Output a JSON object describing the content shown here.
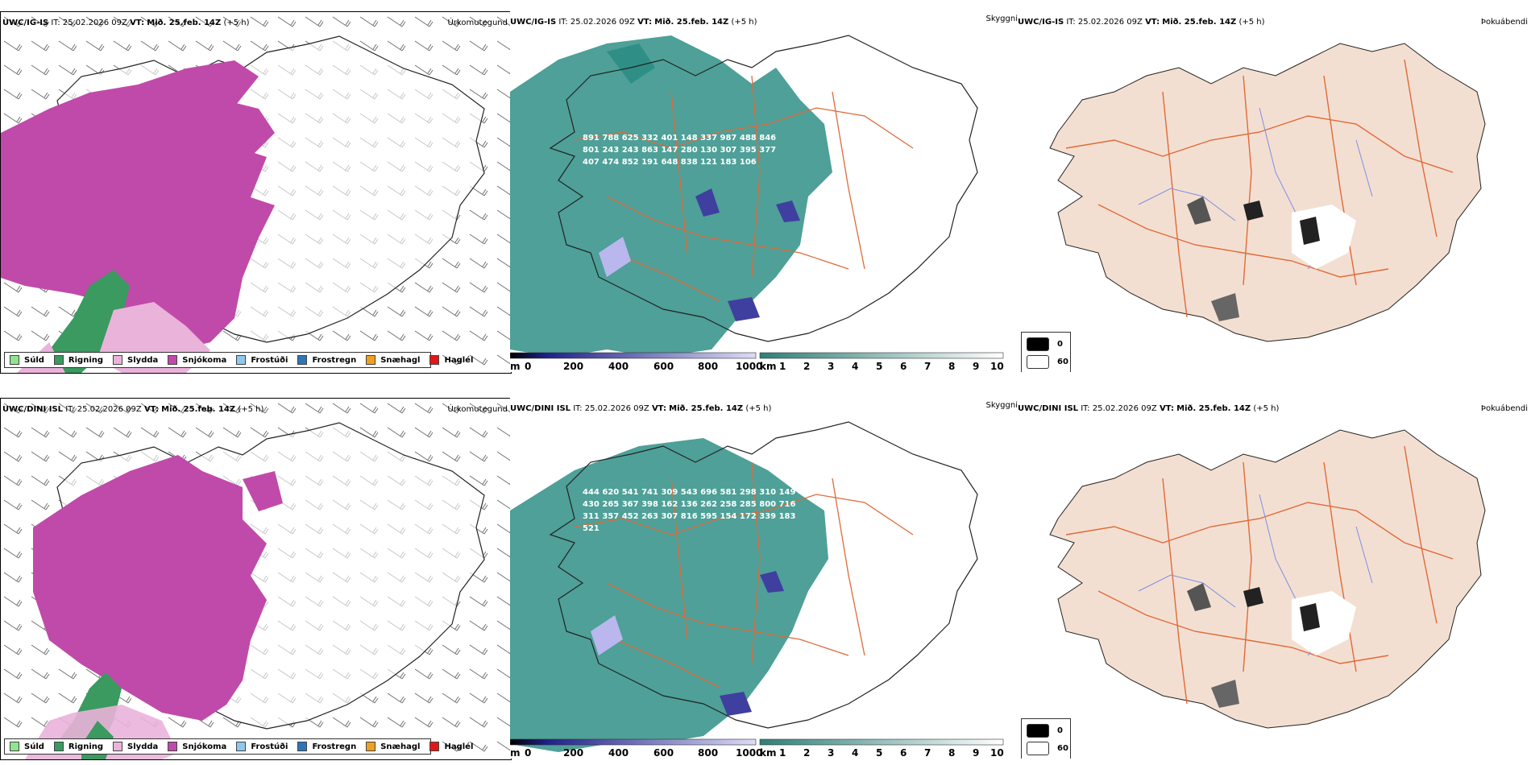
{
  "colors": {
    "snow": "#c04aa9",
    "rain": "#3a9a60",
    "sleet": "#eab3da",
    "teal": "#2f8f86",
    "land": "#f3dfd1",
    "roads": "#e06a3a",
    "rivers": "#7c8ee6"
  },
  "rows": [
    {
      "model": "UWC/IG-IS",
      "it_label": "IT:",
      "it_value": "25.02.2026 09Z",
      "vt_label": "VT:",
      "vt_value": "Mið. 25.feb. 14Z",
      "lead": "(+5 h)",
      "precip_title": "Úrkomutegund",
      "cloud_title": "Skyggni",
      "fog_title": "Þokuábendi",
      "elev_labels": [
        "891",
        "788",
        "625",
        "332",
        "401",
        "148",
        "337",
        "987",
        "488",
        "846",
        "801",
        "243",
        "243",
        "863",
        "147",
        "280",
        "130",
        "307",
        "395",
        "377",
        "407",
        "474",
        "852",
        "191",
        "648",
        "838",
        "121",
        "183",
        "106"
      ]
    },
    {
      "model": "UWC/DINI ISL",
      "it_label": "IT:",
      "it_value": "25.02.2026 09Z",
      "vt_label": "VT:",
      "vt_value": "Mið. 25.feb. 14Z",
      "lead": "(+5 h)",
      "precip_title": "Úrkomutegund",
      "cloud_title": "Skyggni",
      "fog_title": "Þokuábendi",
      "elev_labels": [
        "444",
        "620",
        "541",
        "741",
        "309",
        "543",
        "696",
        "581",
        "298",
        "310",
        "149",
        "430",
        "265",
        "367",
        "398",
        "162",
        "136",
        "262",
        "258",
        "285",
        "800",
        "716",
        "311",
        "357",
        "452",
        "263",
        "307",
        "816",
        "595",
        "154",
        "172",
        "339",
        "183",
        "521"
      ]
    }
  ],
  "precip_legend": [
    {
      "label": "Súld",
      "color": "#8fe58f"
    },
    {
      "label": "Rigning",
      "color": "#3a9a60"
    },
    {
      "label": "Slydda",
      "color": "#eab3da"
    },
    {
      "label": "Snjókoma",
      "color": "#c04aa9"
    },
    {
      "label": "Frostúði",
      "color": "#8ec8ee"
    },
    {
      "label": "Frostregn",
      "color": "#2f76b5"
    },
    {
      "label": "Snæhagl",
      "color": "#f0a020"
    },
    {
      "label": "Haglél",
      "color": "#e01818"
    }
  ],
  "colorbar_m": {
    "unit": "m",
    "ticks": [
      "0",
      "200",
      "400",
      "600",
      "800",
      "1000"
    ]
  },
  "colorbar_km": {
    "unit": "km",
    "ticks": [
      "1",
      "2",
      "3",
      "4",
      "5",
      "6",
      "7",
      "8",
      "9",
      "10"
    ]
  },
  "fog_legend": {
    "values": [
      "0",
      "60"
    ]
  }
}
